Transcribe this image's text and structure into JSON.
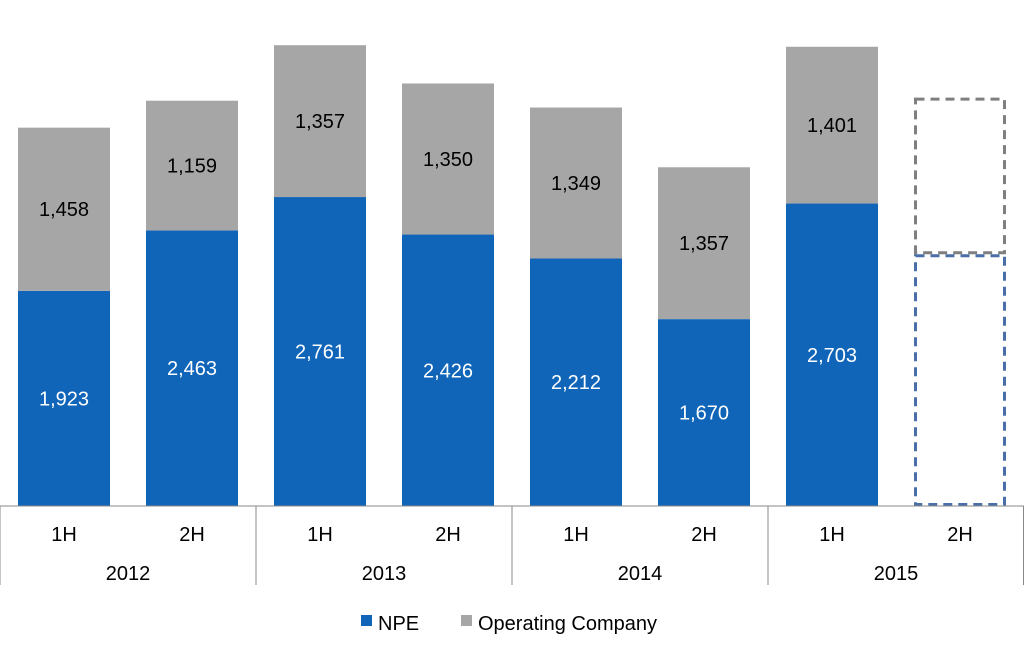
{
  "chart_data": {
    "type": "bar",
    "stacked": true,
    "title": "",
    "xlabel": "",
    "ylabel": "",
    "ylim": [
      0,
      4200
    ],
    "grid": false,
    "legend_position": "bottom",
    "groups": [
      {
        "label": "2012",
        "categories": [
          "1H",
          "2H"
        ]
      },
      {
        "label": "2013",
        "categories": [
          "1H",
          "2H"
        ]
      },
      {
        "label": "2014",
        "categories": [
          "1H",
          "2H"
        ]
      },
      {
        "label": "2015",
        "categories": [
          "1H",
          "2H"
        ]
      }
    ],
    "categories": [
      "1H",
      "2H",
      "1H",
      "2H",
      "1H",
      "2H",
      "1H",
      "2H"
    ],
    "series": [
      {
        "name": "NPE",
        "color": "#1065b9",
        "values": [
          1923,
          2463,
          2761,
          2426,
          2212,
          1670,
          2703,
          2250
        ],
        "labels": [
          "1,923",
          "2,463",
          "2,761",
          "2,426",
          "2,212",
          "1,670",
          "2,703",
          ""
        ]
      },
      {
        "name": "Operating Company",
        "color": "#a6a6a6",
        "values": [
          1458,
          1159,
          1357,
          1350,
          1349,
          1357,
          1401,
          1400
        ],
        "labels": [
          "1,458",
          "1,159",
          "1,357",
          "1,350",
          "1,349",
          "1,357",
          "1,401",
          ""
        ]
      }
    ],
    "projected": [
      false,
      false,
      false,
      false,
      false,
      false,
      false,
      true
    ],
    "projected_styles": {
      "NPE": {
        "stroke": "#4a6fa8"
      },
      "Operating Company": {
        "stroke": "#7f7f7f"
      }
    }
  }
}
